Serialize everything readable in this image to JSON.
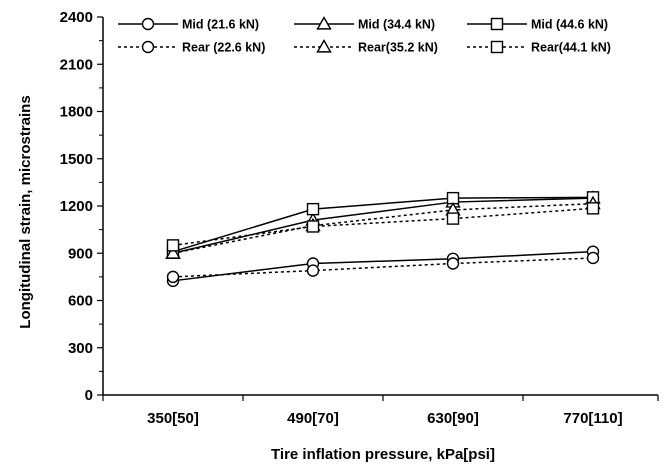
{
  "chart_data": {
    "type": "line",
    "xlabel": "Tire inflation pressure, kPa[psi]",
    "ylabel": "Longitudinal strain, microstrains",
    "categories": [
      "350[50]",
      "490[70]",
      "630[90]",
      "770[110]"
    ],
    "ylim": [
      0,
      2400
    ],
    "yticks": [
      0,
      300,
      600,
      900,
      1200,
      1500,
      1800,
      2100,
      2400
    ],
    "grid": false,
    "legend_position": "top",
    "series": [
      {
        "name": "Mid (21.6 kN)",
        "marker": "circle",
        "line": "solid",
        "values": [
          725,
          835,
          865,
          910
        ]
      },
      {
        "name": "Mid (34.4 kN)",
        "marker": "triangle",
        "line": "solid",
        "values": [
          900,
          1110,
          1225,
          1250
        ]
      },
      {
        "name": "Mid (44.6 kN)",
        "marker": "square",
        "line": "solid",
        "values": [
          910,
          1180,
          1250,
          1255
        ]
      },
      {
        "name": "Rear (22.6 kN)",
        "marker": "circle",
        "line": "dotted",
        "values": [
          750,
          790,
          835,
          870
        ]
      },
      {
        "name": "Rear(35.2 kN)",
        "marker": "triangle",
        "line": "dotted",
        "values": [
          900,
          1075,
          1175,
          1215
        ]
      },
      {
        "name": "Rear(44.1 kN)",
        "marker": "square",
        "line": "dotted",
        "values": [
          950,
          1070,
          1120,
          1185
        ]
      }
    ]
  }
}
